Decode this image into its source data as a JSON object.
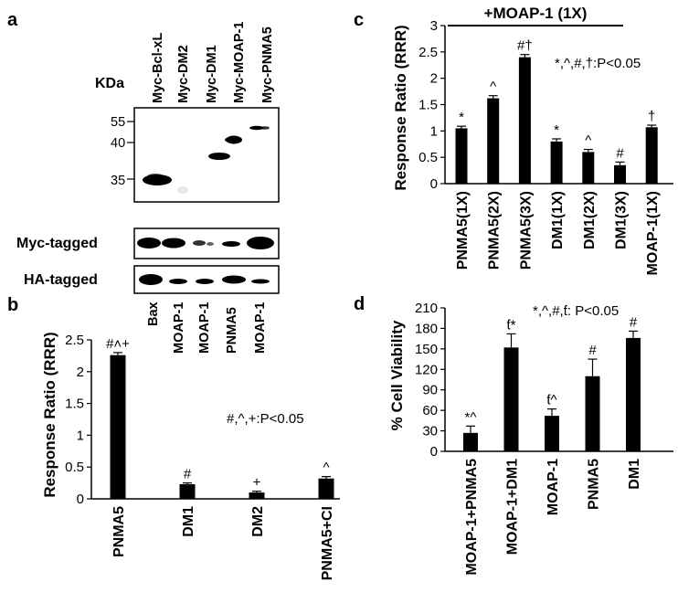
{
  "panels": {
    "a": {
      "letter": "a",
      "kda_label": "KDa",
      "lanes": [
        "Myc-Bcl-xL",
        "Myc-DM2",
        "Myc-DM1",
        "Myc-MOAP-1",
        "Myc-PNMA5"
      ],
      "markers": [
        "55",
        "40",
        "35"
      ],
      "strip_labels": [
        "Myc-tagged",
        "HA-tagged"
      ],
      "ha_lanes": [
        "Bax",
        "MOAP-1",
        "MOAP-1",
        "PNMA5",
        "MOAP-1"
      ]
    }
  },
  "chart_data": [
    {
      "panel": "b",
      "type": "bar",
      "ylabel": "Response Ratio (RRR)",
      "ylim": [
        0,
        2.5
      ],
      "yticks": [
        "0",
        "0.5",
        "1",
        "1.5",
        "2",
        "2.5"
      ],
      "categories": [
        "PNMA5",
        "DM1",
        "DM2",
        "PNMA5+CI"
      ],
      "values": [
        2.26,
        0.23,
        0.1,
        0.32
      ],
      "errors": [
        0.04,
        0.02,
        0.02,
        0.03
      ],
      "bar_labels": [
        "#˄+",
        "#",
        "+",
        "^"
      ],
      "annotation": "#,^,+:P<0.05",
      "bar_color": "#000000"
    },
    {
      "panel": "c",
      "type": "bar",
      "ylabel": "Response Ratio (RRR)",
      "ylim": [
        0,
        3
      ],
      "yticks": [
        "0",
        "0.5",
        "1",
        "1.5",
        "2",
        "2.5",
        "3"
      ],
      "bracket_label": "+MOAP-1 (1X)",
      "categories": [
        "PNMA5(1X)",
        "PNMA5(2X)",
        "PNMA5(3X)",
        "DM1(1X)",
        "DM1(2X)",
        "DM1(3X)",
        "MOAP-1(1X)"
      ],
      "values": [
        1.05,
        1.62,
        2.4,
        0.8,
        0.6,
        0.35,
        1.07
      ],
      "errors": [
        0.04,
        0.05,
        0.05,
        0.05,
        0.05,
        0.06,
        0.04
      ],
      "bar_labels": [
        "*",
        "^",
        "#†",
        "*",
        "^",
        "#",
        "†"
      ],
      "annotation": "*,^,#,†:P<0.05",
      "bar_color": "#000000"
    },
    {
      "panel": "d",
      "type": "bar",
      "ylabel": "% Cell Viability",
      "ylim": [
        0,
        210
      ],
      "yticks": [
        "0",
        "30",
        "60",
        "90",
        "120",
        "150",
        "180",
        "210"
      ],
      "categories": [
        "MOAP-1+PNMA5",
        "MOAP-1+DM1",
        "MOAP-1",
        "PNMA5",
        "DM1"
      ],
      "values": [
        27,
        152,
        52,
        110,
        166
      ],
      "errors": [
        10,
        20,
        10,
        25,
        10
      ],
      "bar_labels": [
        "*^",
        "ƭ*",
        "ƭ^",
        "#",
        "#"
      ],
      "annotation": "*,^,#,ƭ: P<0.05",
      "bar_color": "#000000"
    }
  ]
}
